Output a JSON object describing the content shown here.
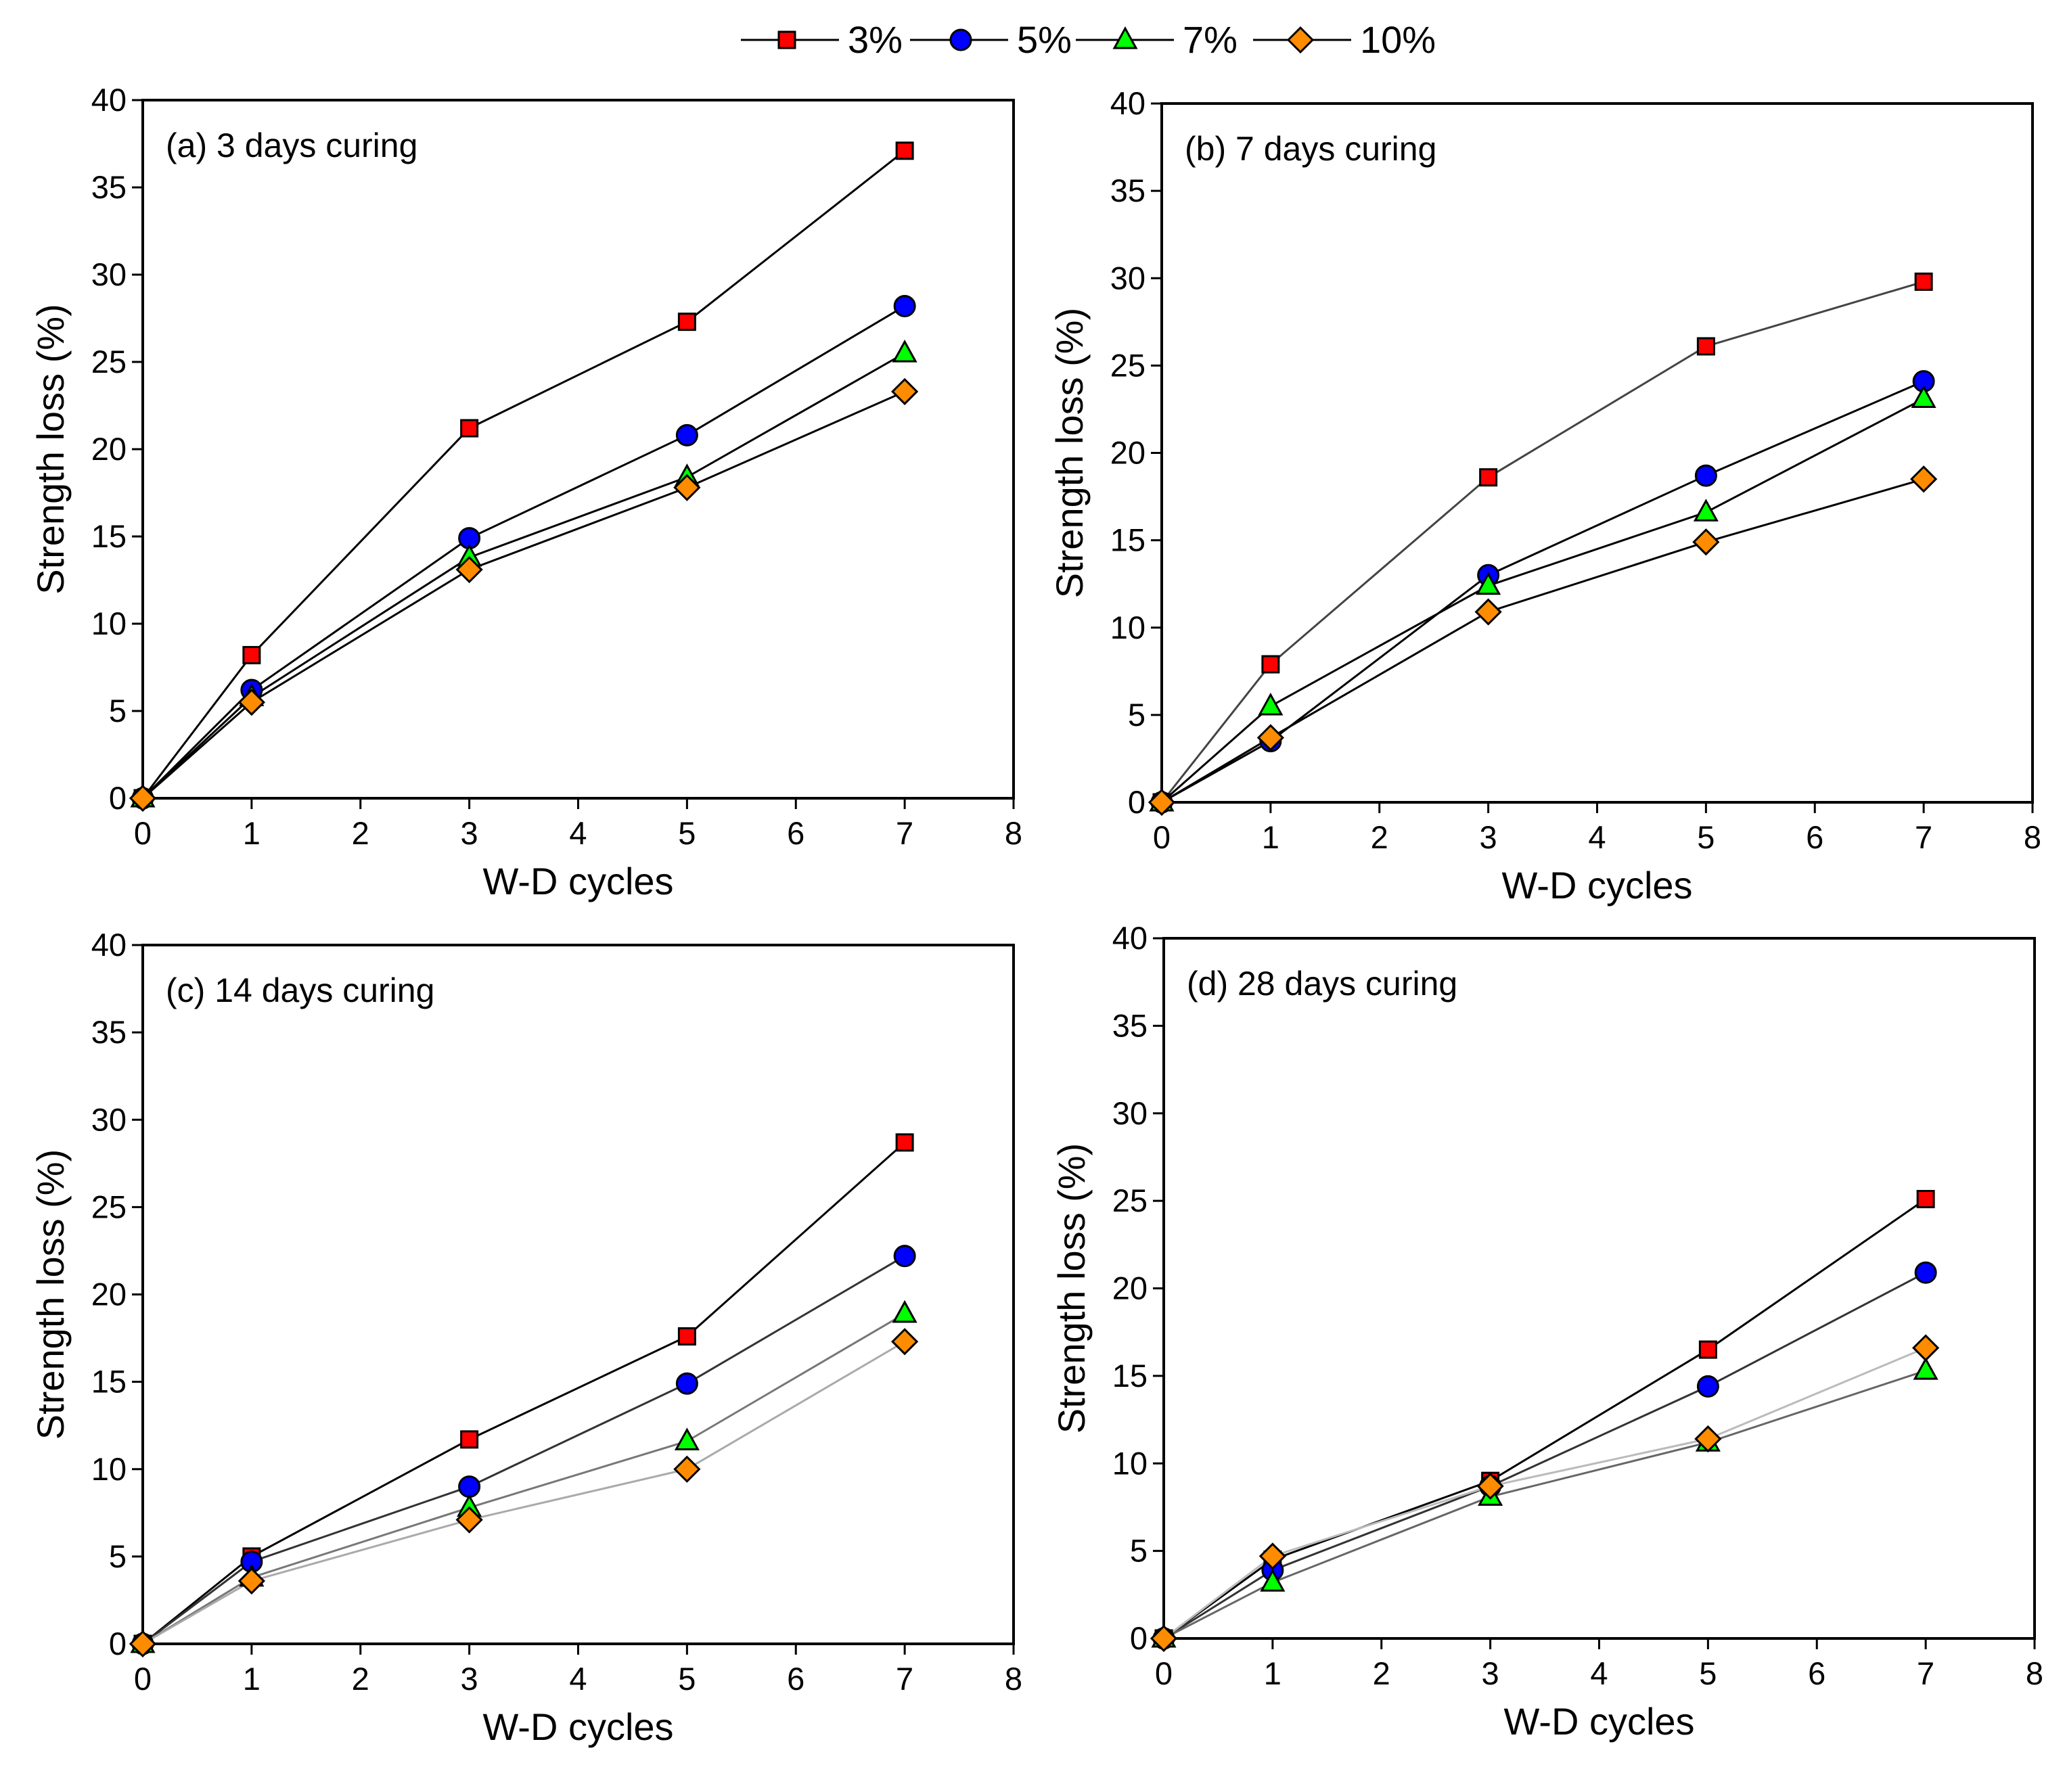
{
  "legend": [
    {
      "label": "3%",
      "color": "#ff0000",
      "marker": "square"
    },
    {
      "label": "5%",
      "color": "#0000ff",
      "marker": "circle"
    },
    {
      "label": "7%",
      "color": "#00ff00",
      "marker": "triangle"
    },
    {
      "label": "10%",
      "color": "#ff8c00",
      "marker": "diamond"
    }
  ],
  "chart_data": [
    {
      "type": "line",
      "title": "(a) 3 days curing",
      "xlabel": "W-D cycles",
      "ylabel": "Strength loss (%)",
      "xlim": [
        0,
        8
      ],
      "ylim": [
        0,
        40
      ],
      "xticks": [
        0,
        1,
        2,
        3,
        4,
        5,
        6,
        7,
        8
      ],
      "yticks": [
        0,
        5,
        10,
        15,
        20,
        25,
        30,
        35,
        40
      ],
      "x": [
        0,
        1,
        3,
        5,
        7
      ],
      "series": [
        {
          "name": "3%",
          "values": [
            0,
            8.2,
            21.2,
            27.3,
            37.1
          ],
          "line_color": "#000000"
        },
        {
          "name": "5%",
          "values": [
            0,
            6.2,
            14.9,
            20.8,
            28.2
          ],
          "line_color": "#000000"
        },
        {
          "name": "7%",
          "values": [
            0,
            5.8,
            13.8,
            18.4,
            25.5
          ],
          "line_color": "#000000"
        },
        {
          "name": "10%",
          "values": [
            0,
            5.5,
            13.1,
            17.8,
            23.3
          ],
          "line_color": "#000000"
        }
      ]
    },
    {
      "type": "line",
      "title": "(b) 7 days curing",
      "xlabel": "W-D cycles",
      "ylabel": "Strength loss (%)",
      "xlim": [
        0,
        8
      ],
      "ylim": [
        0,
        40
      ],
      "xticks": [
        0,
        1,
        2,
        3,
        4,
        5,
        6,
        7,
        8
      ],
      "yticks": [
        0,
        5,
        10,
        15,
        20,
        25,
        30,
        35,
        40
      ],
      "x": [
        0,
        1,
        3,
        5,
        7
      ],
      "series": [
        {
          "name": "3%",
          "values": [
            0,
            7.9,
            18.6,
            26.1,
            29.8
          ],
          "line_color": "#444444"
        },
        {
          "name": "5%",
          "values": [
            0,
            3.5,
            13.0,
            18.7,
            24.1
          ],
          "line_color": "#000000"
        },
        {
          "name": "7%",
          "values": [
            0,
            5.5,
            12.4,
            16.6,
            23.1
          ],
          "line_color": "#000000"
        },
        {
          "name": "10%",
          "values": [
            0,
            3.7,
            10.9,
            14.9,
            18.5
          ],
          "line_color": "#000000"
        }
      ]
    },
    {
      "type": "line",
      "title": "(c) 14 days curing",
      "xlabel": "W-D cycles",
      "ylabel": "Strength loss (%)",
      "xlim": [
        0,
        8
      ],
      "ylim": [
        0,
        40
      ],
      "xticks": [
        0,
        1,
        2,
        3,
        4,
        5,
        6,
        7,
        8
      ],
      "yticks": [
        0,
        5,
        10,
        15,
        20,
        25,
        30,
        35,
        40
      ],
      "x": [
        0,
        1,
        3,
        5,
        7
      ],
      "series": [
        {
          "name": "3%",
          "values": [
            0,
            5.0,
            11.7,
            17.6,
            28.7
          ],
          "line_color": "#000000"
        },
        {
          "name": "5%",
          "values": [
            0,
            4.7,
            9.0,
            14.9,
            22.2
          ],
          "line_color": "#333333"
        },
        {
          "name": "7%",
          "values": [
            0,
            3.8,
            7.8,
            11.6,
            18.9
          ],
          "line_color": "#777777"
        },
        {
          "name": "10%",
          "values": [
            0,
            3.6,
            7.1,
            10.0,
            17.3
          ],
          "line_color": "#aaaaaa"
        }
      ]
    },
    {
      "type": "line",
      "title": "(d) 28 days curing",
      "xlabel": "W-D cycles",
      "ylabel": "Strength loss (%)",
      "xlim": [
        0,
        8
      ],
      "ylim": [
        0,
        40
      ],
      "xticks": [
        0,
        1,
        2,
        3,
        4,
        5,
        6,
        7,
        8
      ],
      "yticks": [
        0,
        5,
        10,
        15,
        20,
        25,
        30,
        35,
        40
      ],
      "x": [
        0,
        1,
        3,
        5,
        7
      ],
      "series": [
        {
          "name": "3%",
          "values": [
            0,
            4.5,
            9.0,
            16.5,
            25.1
          ],
          "line_color": "#000000"
        },
        {
          "name": "5%",
          "values": [
            0,
            3.9,
            8.7,
            14.4,
            20.9
          ],
          "line_color": "#333333"
        },
        {
          "name": "7%",
          "values": [
            0,
            3.2,
            8.1,
            11.2,
            15.3
          ],
          "line_color": "#666666"
        },
        {
          "name": "10%",
          "values": [
            0,
            4.7,
            8.7,
            11.4,
            16.6
          ],
          "line_color": "#bbbbbb"
        }
      ]
    }
  ]
}
